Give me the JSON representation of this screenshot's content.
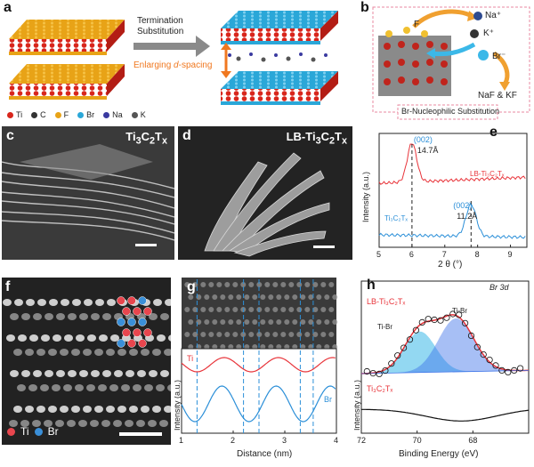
{
  "panels": {
    "a": {
      "label": "a",
      "arrow_text_1": "Termination",
      "arrow_text_2": "Substitution",
      "enlarge_text": "Enlarging",
      "d_letter": "d",
      "spacing_text": "-spacing",
      "legend": [
        {
          "name": "Ti",
          "color": "#d8261c"
        },
        {
          "name": "C",
          "color": "#333333"
        },
        {
          "name": "F",
          "color": "#e8a317"
        },
        {
          "name": "Br",
          "color": "#2aa7d8"
        },
        {
          "name": "Na",
          "color": "#3a3aa0"
        },
        {
          "name": "K",
          "color": "#555555"
        }
      ],
      "colors": {
        "ti": "#d8261c",
        "f_layer": "#e8a317",
        "br_layer": "#2aa7d8",
        "arrow": "#f0a030",
        "enlarge": "#f07820"
      }
    },
    "b": {
      "label": "b",
      "f_label": "F",
      "na_label": "Na⁺",
      "k_label": "K⁺",
      "br_label": "Br⁻",
      "product": "NaF & KF",
      "caption": "Br-Nucleophilic Substitution"
    },
    "c": {
      "label": "c",
      "title_pre": "Ti",
      "title_sub1": "3",
      "title_mid": "C",
      "title_sub2": "2",
      "title_post": "T",
      "title_sub3": "x"
    },
    "d": {
      "label": "d",
      "title_pre": "LB-Ti",
      "title_sub1": "3",
      "title_mid": "C",
      "title_sub2": "2",
      "title_post": "T",
      "title_sub3": "x"
    },
    "e": {
      "label": "e",
      "ylabel": "Intensity (a.u.)",
      "xlabel": "2 θ (°)",
      "peak1_index": "(002)",
      "peak1_d": "14.7Å",
      "peak2_index": "(002)",
      "peak2_d": "11.2Å",
      "series1_name": "LB-Ti₃C₂Tₓ",
      "series2_name": "Ti₃C₂Tₓ"
    },
    "f": {
      "label": "f",
      "legend_ti": "Ti",
      "legend_br": "Br"
    },
    "g": {
      "label": "g",
      "ti_label": "Ti",
      "br_label": "Br",
      "ylabel": "Intensity (a.u.)",
      "xlabel": "Distance (nm)"
    },
    "h": {
      "label": "h",
      "corner_label": "Br 3d",
      "series1_name": "LB-Ti₃C₂Tₓ",
      "series2_name": "Ti₃C₂Tₓ",
      "comp1": "Ti-Br",
      "comp2": "Ti-Br",
      "ylabel": "Intensity (a.u.)",
      "xlabel": "Binding Energy (eV)"
    }
  },
  "chart_data": [
    {
      "type": "line",
      "panel": "e",
      "xlabel": "2 θ (°)",
      "ylabel": "Intensity (a.u.)",
      "xlim": [
        5,
        9.5
      ],
      "xticks": [
        5,
        6,
        7,
        8,
        9
      ],
      "series": [
        {
          "name": "LB-Ti₃C₂Tₓ",
          "color": "#e8343a",
          "peak_x": 6.0,
          "annotation": "14.7Å"
        },
        {
          "name": "Ti₃C₂Tₓ",
          "color": "#2b8fd8",
          "peak_x": 7.8,
          "annotation": "11.2Å"
        }
      ]
    },
    {
      "type": "line",
      "panel": "g",
      "xlabel": "Distance (nm)",
      "ylabel": "Intensity (a.u.)",
      "xlim": [
        1,
        4
      ],
      "xticks": [
        1,
        2,
        3,
        4
      ],
      "series": [
        {
          "name": "Ti",
          "color": "#e8343a"
        },
        {
          "name": "Br",
          "color": "#2b8fd8"
        }
      ],
      "dashed_lines_x": [
        1.3,
        2.2,
        2.5,
        3.3,
        3.55
      ]
    },
    {
      "type": "scatter",
      "panel": "h",
      "xlabel": "Binding Energy (eV)",
      "ylabel": "Intensity (a.u.)",
      "xlim": [
        72,
        66
      ],
      "xticks": [
        72,
        70,
        68
      ],
      "series": [
        {
          "name": "LB-Ti₃C₂Tₓ",
          "color": "#e8343a"
        },
        {
          "name": "Ti₃C₂Tₓ",
          "color": "#111111"
        }
      ],
      "components": [
        {
          "name": "Ti-Br",
          "center": 69.9,
          "color": "#3bb8e8"
        },
        {
          "name": "Ti-Br",
          "center": 68.6,
          "color": "#3b72e8"
        }
      ]
    }
  ]
}
